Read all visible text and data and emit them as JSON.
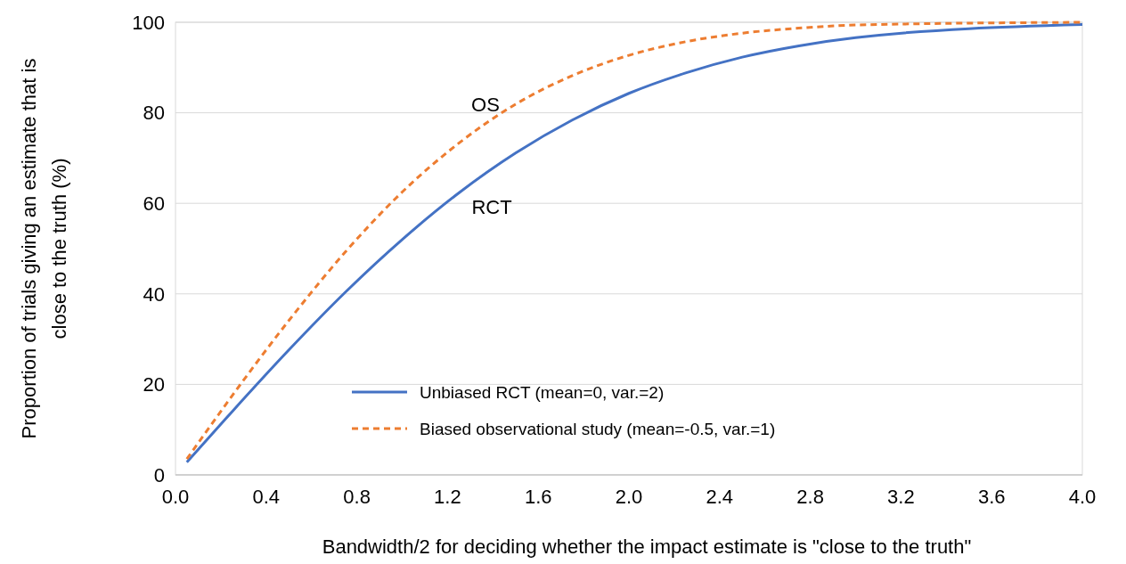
{
  "chart_data": {
    "type": "line",
    "xlabel": "Bandwidth/2 for deciding whether the impact estimate is \"close to the truth\"",
    "ylabel": "Proportion of trials giving an estimate that is close to the truth (%)",
    "x": [
      0.05,
      0.25,
      0.5,
      0.75,
      1,
      1.25,
      1.5,
      1.75,
      2,
      2.25,
      2.5,
      2.75,
      3,
      4
    ],
    "series": [
      {
        "name": "Unbiased RCT (mean=0, var.=2)",
        "color": "#4472c4",
        "line_style": "solid",
        "values": [
          2.8,
          14,
          27.6,
          40.4,
          52,
          62.3,
          71.1,
          78.4,
          84.3,
          88.8,
          92.3,
          94.8,
          96.6,
          99.5
        ]
      },
      {
        "name": "Biased observational study (mean=-0.5, var.=1)",
        "color": "#ed7d31",
        "line_style": "dashed",
        "values": [
          3.5,
          17.5,
          34.1,
          49.3,
          62.5,
          73.3,
          81.9,
          88.2,
          92.7,
          95.7,
          97.6,
          98.7,
          99.4,
          100
        ]
      }
    ],
    "xlim": [
      0,
      4
    ],
    "xticks": [
      {
        "value": 0,
        "label": "0.0"
      },
      {
        "value": 0.4,
        "label": "0.4"
      },
      {
        "value": 0.8,
        "label": "0.8"
      },
      {
        "value": 1.2,
        "label": "1.2"
      },
      {
        "value": 1.6,
        "label": "1.6"
      },
      {
        "value": 2,
        "label": "2.0"
      },
      {
        "value": 2.4,
        "label": "2.4"
      },
      {
        "value": 2.8,
        "label": "2.8"
      },
      {
        "value": 3.2,
        "label": "3.2"
      },
      {
        "value": 3.6,
        "label": "3.6"
      },
      {
        "value": 4,
        "label": "4.0"
      }
    ],
    "ylim": [
      0,
      100
    ],
    "yticks": [
      0,
      20,
      40,
      60,
      80,
      100
    ],
    "grid": "y",
    "legend": "bottom",
    "marker": "none",
    "annotations": [
      "OS",
      "RCT"
    ]
  }
}
